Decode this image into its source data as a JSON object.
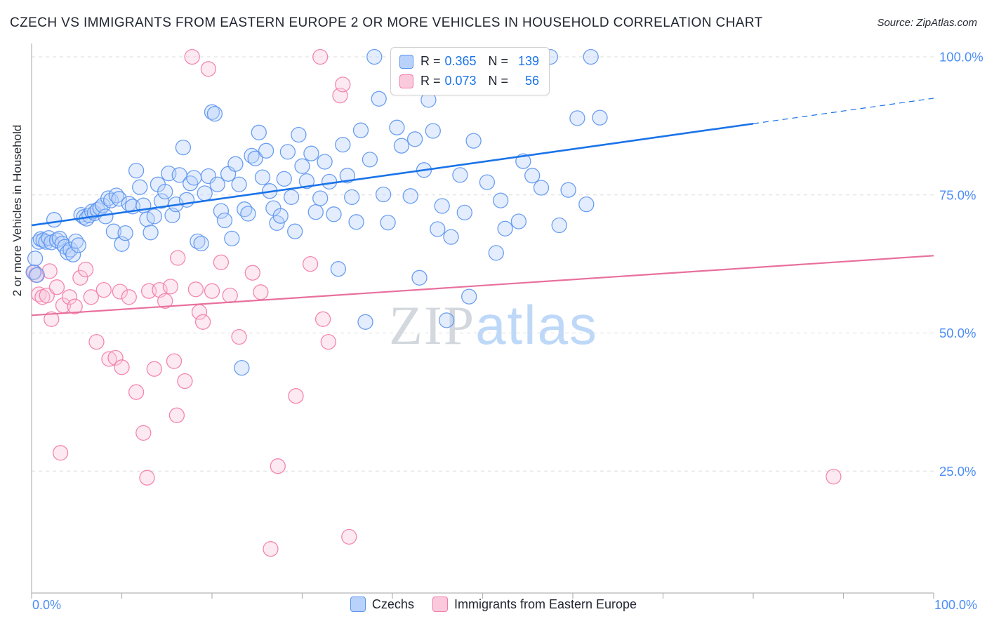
{
  "header": {
    "title": "CZECH VS IMMIGRANTS FROM EASTERN EUROPE 2 OR MORE VEHICLES IN HOUSEHOLD CORRELATION CHART",
    "source": "Source: ZipAtlas.com"
  },
  "watermark": {
    "zip": "ZIP",
    "atlas": "atlas"
  },
  "axes": {
    "y_label": "2 or more Vehicles in Household",
    "x_min_label": "0.0%",
    "x_max_label": "100.0%"
  },
  "legend_box": {
    "rows": [
      {
        "r_label": "R =",
        "r_value": "0.365",
        "n_label": "N =",
        "n_value": "139"
      },
      {
        "r_label": "R =",
        "r_value": "0.073",
        "n_label": "N =",
        "n_value": "56"
      }
    ]
  },
  "bottom_legend": {
    "items": [
      {
        "label": "Czechs"
      },
      {
        "label": "Immigrants from Eastern Europe"
      }
    ]
  },
  "colors": {
    "accent_blue": "#1a73e8",
    "axis_label_blue": "#4c8df6",
    "blue_fill": "#b8d2fb",
    "blue_stroke": "#5b93f0",
    "pink_fill": "#fbc9dc",
    "pink_stroke": "#f27ba5",
    "pink_line": "#e8709d",
    "grid": "#dcdcdc",
    "frame": "#b3b3b3"
  },
  "chart_data": {
    "type": "scatter",
    "title": "Czech vs Immigrants from Eastern Europe 2 or more Vehicles in Household",
    "xlabel": "",
    "ylabel": "2 or more Vehicles in Household",
    "xlim": [
      0,
      100
    ],
    "ylim": [
      0,
      105
    ],
    "x_ticks": [
      0,
      10,
      20,
      30,
      40,
      50,
      60,
      70,
      80,
      90,
      100
    ],
    "y_ticks": [
      {
        "pct": 100,
        "label": "100.0%"
      },
      {
        "pct": 75,
        "label": "75.0%"
      },
      {
        "pct": 50,
        "label": "50.0%"
      },
      {
        "pct": 25,
        "label": "25.0%"
      }
    ],
    "series": [
      {
        "id": "czechs",
        "name": "Czechs",
        "R": 0.365,
        "N": 139,
        "color": "#5b93f0",
        "fill": "#b8d2fb",
        "points": [
          [
            0.2,
            61.0
          ],
          [
            0.4,
            63.5
          ],
          [
            0.6,
            60.5
          ],
          [
            0.8,
            66.5
          ],
          [
            1.0,
            67.0
          ],
          [
            1.3,
            66.8
          ],
          [
            1.6,
            66.5
          ],
          [
            1.9,
            67.2
          ],
          [
            2.2,
            66.4
          ],
          [
            2.5,
            70.5
          ],
          [
            2.8,
            66.8
          ],
          [
            3.1,
            67.1
          ],
          [
            3.4,
            66.2
          ],
          [
            3.7,
            65.6
          ],
          [
            4.0,
            64.6
          ],
          [
            4.3,
            65.1
          ],
          [
            4.6,
            64.2
          ],
          [
            4.9,
            66.6
          ],
          [
            5.2,
            65.9
          ],
          [
            5.5,
            71.4
          ],
          [
            5.8,
            71.0
          ],
          [
            6.1,
            70.7
          ],
          [
            6.4,
            71.3
          ],
          [
            6.7,
            72.0
          ],
          [
            7.0,
            71.7
          ],
          [
            7.3,
            72.3
          ],
          [
            7.6,
            72.6
          ],
          [
            7.9,
            73.1
          ],
          [
            8.2,
            71.1
          ],
          [
            8.5,
            74.4
          ],
          [
            8.8,
            74.0
          ],
          [
            9.1,
            68.4
          ],
          [
            9.4,
            74.9
          ],
          [
            9.7,
            74.3
          ],
          [
            10.0,
            66.1
          ],
          [
            10.4,
            68.1
          ],
          [
            10.8,
            73.4
          ],
          [
            11.2,
            72.9
          ],
          [
            11.6,
            79.4
          ],
          [
            12.0,
            76.4
          ],
          [
            12.4,
            73.1
          ],
          [
            12.8,
            70.6
          ],
          [
            13.2,
            68.2
          ],
          [
            13.6,
            71.1
          ],
          [
            14.0,
            76.9
          ],
          [
            14.4,
            73.9
          ],
          [
            14.8,
            75.6
          ],
          [
            15.2,
            78.9
          ],
          [
            15.6,
            71.3
          ],
          [
            16.0,
            73.3
          ],
          [
            16.4,
            78.6
          ],
          [
            16.8,
            83.6
          ],
          [
            17.2,
            74.1
          ],
          [
            17.6,
            77.1
          ],
          [
            18.0,
            78.1
          ],
          [
            18.4,
            66.6
          ],
          [
            18.8,
            66.2
          ],
          [
            19.2,
            75.3
          ],
          [
            19.6,
            78.4
          ],
          [
            20.0,
            90.0
          ],
          [
            20.3,
            89.7
          ],
          [
            20.6,
            76.9
          ],
          [
            21.0,
            72.1
          ],
          [
            21.4,
            70.4
          ],
          [
            21.8,
            78.8
          ],
          [
            22.2,
            67.1
          ],
          [
            22.6,
            80.6
          ],
          [
            23.0,
            76.9
          ],
          [
            23.3,
            43.7
          ],
          [
            23.6,
            72.4
          ],
          [
            24.0,
            71.6
          ],
          [
            24.4,
            82.1
          ],
          [
            24.8,
            81.6
          ],
          [
            25.2,
            86.3
          ],
          [
            25.6,
            78.2
          ],
          [
            26.0,
            83.0
          ],
          [
            26.4,
            75.7
          ],
          [
            26.8,
            72.6
          ],
          [
            27.2,
            69.9
          ],
          [
            27.6,
            71.2
          ],
          [
            28.0,
            77.9
          ],
          [
            28.4,
            82.8
          ],
          [
            28.8,
            74.6
          ],
          [
            29.2,
            68.4
          ],
          [
            29.6,
            85.9
          ],
          [
            30.0,
            80.2
          ],
          [
            30.5,
            77.5
          ],
          [
            31.0,
            82.5
          ],
          [
            31.5,
            71.9
          ],
          [
            32.0,
            74.4
          ],
          [
            32.5,
            81.0
          ],
          [
            33.0,
            77.4
          ],
          [
            33.5,
            71.5
          ],
          [
            34.0,
            61.6
          ],
          [
            34.5,
            84.1
          ],
          [
            35.0,
            78.5
          ],
          [
            35.5,
            74.6
          ],
          [
            36.0,
            70.1
          ],
          [
            36.5,
            86.7
          ],
          [
            37.0,
            52.0
          ],
          [
            37.5,
            81.4
          ],
          [
            38.0,
            100.0
          ],
          [
            38.5,
            92.4
          ],
          [
            39.0,
            75.1
          ],
          [
            39.5,
            70.0
          ],
          [
            40.5,
            87.2
          ],
          [
            41.0,
            83.9
          ],
          [
            41.5,
            100.0
          ],
          [
            42.0,
            74.8
          ],
          [
            42.5,
            85.1
          ],
          [
            43.0,
            60.0
          ],
          [
            43.5,
            79.5
          ],
          [
            44.0,
            92.2
          ],
          [
            44.5,
            86.6
          ],
          [
            45.0,
            68.8
          ],
          [
            45.5,
            73.0
          ],
          [
            46.0,
            52.3
          ],
          [
            46.5,
            67.4
          ],
          [
            47.0,
            100.0
          ],
          [
            47.5,
            78.6
          ],
          [
            48.0,
            71.8
          ],
          [
            48.5,
            56.6
          ],
          [
            49.0,
            84.8
          ],
          [
            50.5,
            77.3
          ],
          [
            51.5,
            64.5
          ],
          [
            52.0,
            74.0
          ],
          [
            52.5,
            68.9
          ],
          [
            53.5,
            100.0
          ],
          [
            54.0,
            70.2
          ],
          [
            54.5,
            81.1
          ],
          [
            55.5,
            78.5
          ],
          [
            56.5,
            76.3
          ],
          [
            57.5,
            100.0
          ],
          [
            58.5,
            69.5
          ],
          [
            59.5,
            75.9
          ],
          [
            60.5,
            88.9
          ],
          [
            61.5,
            73.3
          ],
          [
            62.0,
            100.0
          ],
          [
            63.0,
            89.0
          ]
        ]
      },
      {
        "id": "immigrants",
        "name": "Immigrants from Eastern Europe",
        "R": 0.073,
        "N": 56,
        "color": "#f27ba5",
        "fill": "#fbc9dc",
        "points": [
          [
            0.3,
            61.0
          ],
          [
            0.5,
            60.5
          ],
          [
            0.8,
            57.0
          ],
          [
            1.2,
            56.5
          ],
          [
            1.7,
            56.8
          ],
          [
            2.0,
            61.2
          ],
          [
            2.2,
            52.5
          ],
          [
            2.8,
            58.3
          ],
          [
            3.2,
            28.3
          ],
          [
            3.5,
            55.0
          ],
          [
            4.2,
            56.5
          ],
          [
            4.8,
            54.8
          ],
          [
            5.4,
            60.0
          ],
          [
            6.0,
            61.5
          ],
          [
            6.6,
            56.5
          ],
          [
            7.2,
            48.4
          ],
          [
            8.0,
            57.8
          ],
          [
            8.6,
            45.3
          ],
          [
            9.3,
            45.5
          ],
          [
            9.8,
            57.5
          ],
          [
            10.0,
            43.8
          ],
          [
            10.8,
            56.5
          ],
          [
            11.6,
            39.3
          ],
          [
            12.4,
            31.9
          ],
          [
            12.8,
            23.8
          ],
          [
            13.0,
            57.6
          ],
          [
            13.6,
            43.5
          ],
          [
            14.2,
            57.8
          ],
          [
            14.8,
            55.8
          ],
          [
            15.4,
            58.4
          ],
          [
            15.8,
            44.9
          ],
          [
            16.1,
            35.1
          ],
          [
            16.2,
            63.6
          ],
          [
            17.0,
            41.3
          ],
          [
            17.8,
            100.0
          ],
          [
            18.2,
            57.9
          ],
          [
            18.6,
            53.8
          ],
          [
            19.0,
            52.0
          ],
          [
            19.6,
            97.8
          ],
          [
            20.0,
            57.6
          ],
          [
            21.0,
            62.8
          ],
          [
            22.0,
            56.8
          ],
          [
            23.0,
            49.3
          ],
          [
            24.5,
            60.9
          ],
          [
            25.4,
            57.4
          ],
          [
            26.5,
            10.9
          ],
          [
            27.3,
            25.9
          ],
          [
            29.3,
            38.6
          ],
          [
            30.9,
            62.5
          ],
          [
            32.0,
            100.0
          ],
          [
            32.3,
            52.5
          ],
          [
            32.9,
            48.4
          ],
          [
            34.2,
            93.0
          ],
          [
            34.5,
            95.0
          ],
          [
            35.2,
            13.1
          ],
          [
            88.9,
            24.0
          ]
        ]
      }
    ],
    "trend_lines": [
      {
        "series": "immigrants",
        "start": [
          0,
          53.2
        ],
        "end": [
          100,
          64.0
        ],
        "solid_until": 100,
        "color": "#e8709d",
        "width": 2.2
      },
      {
        "series": "czechs",
        "start": [
          0,
          69.5
        ],
        "end": [
          100,
          92.5
        ],
        "solid_until": 80,
        "color": "#1a73e8",
        "width": 2.6
      }
    ],
    "legend_position": "bottom-center",
    "grid": "horizontal-dashed"
  }
}
